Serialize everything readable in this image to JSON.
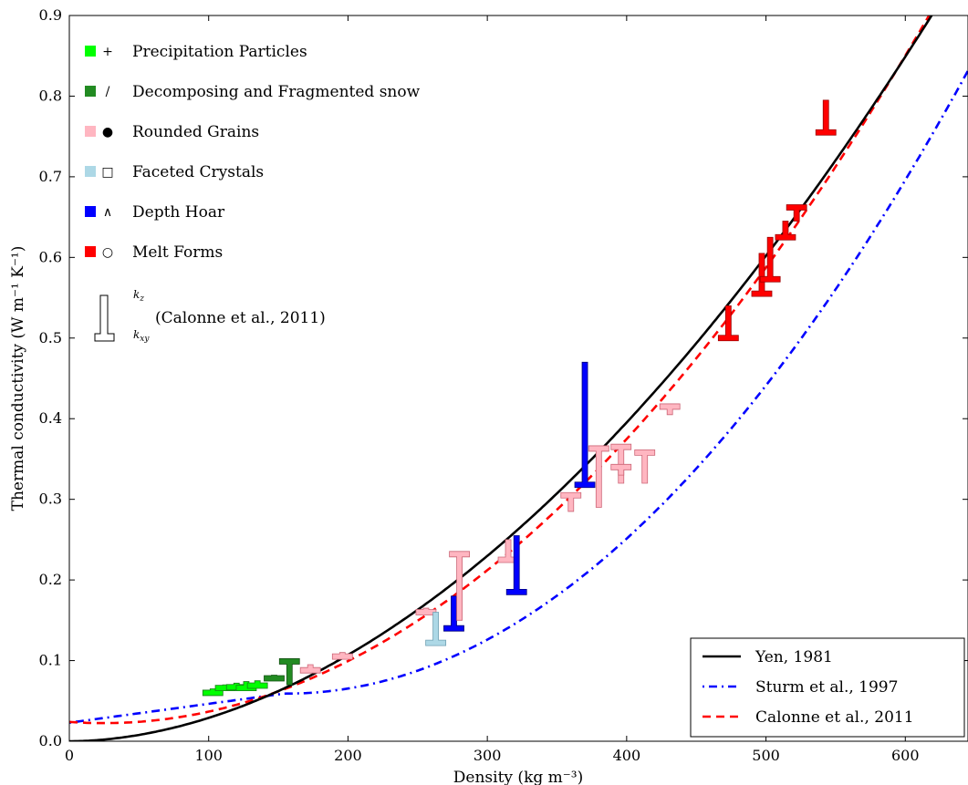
{
  "chart_data": {
    "type": "scatter",
    "xlabel": "Density (kg m⁻³)",
    "ylabel": "Thermal conductivity (W m⁻¹ K⁻¹)",
    "xlim": [
      0,
      645
    ],
    "ylim": [
      0,
      0.9
    ],
    "xticks": [
      "0",
      "100",
      "200",
      "300",
      "400",
      "500",
      "600"
    ],
    "yticks": [
      "0.0",
      "0.1",
      "0.2",
      "0.3",
      "0.4",
      "0.5",
      "0.6",
      "0.7",
      "0.8",
      "0.9"
    ],
    "grid": false,
    "class_legend": {
      "placement": "top-left",
      "entries": [
        {
          "label": "Precipitation Particles",
          "color": "#00ff00",
          "symbol": "+"
        },
        {
          "label": "Decomposing and Fragmented snow",
          "color": "#228b22",
          "symbol": "/"
        },
        {
          "label": "Rounded Grains",
          "color": "#ffb6c1",
          "symbol": "●"
        },
        {
          "label": "Faceted Crystals",
          "color": "#add8e6",
          "symbol": "□"
        },
        {
          "label": "Depth Hoar",
          "color": "#0000ff",
          "symbol": "∧"
        },
        {
          "label": "Melt Forms",
          "color": "#ff0000",
          "symbol": "○"
        }
      ],
      "marker_key": {
        "kz": "k",
        "kz_sub": "z",
        "kxy": "k",
        "kxy_sub": "xy",
        "label": "(Calonne et al., 2011)"
      }
    },
    "line_legend": {
      "placement": "bottom-right",
      "entries": [
        {
          "label": "Yen, 1981",
          "color": "#000000",
          "style": "solid"
        },
        {
          "label": "Sturm et al., 1997",
          "color": "#0000ff",
          "style": "dashdot"
        },
        {
          "label": "Calonne et al., 2011",
          "color": "#ff0000",
          "style": "dashed"
        }
      ]
    },
    "series": [
      {
        "name": "Yen, 1981",
        "formula": "k = 2.22362 * (rho/1000)^1.885",
        "color": "#000000"
      },
      {
        "name": "Sturm et al., 1997",
        "formula": "rho<156: 0.023 + 0.234*(rho/1000); else 0.138 - 1.01*(rho/1000) + 3.233*(rho/1000)^2",
        "color": "#0000ff"
      },
      {
        "name": "Calonne et al., 2011",
        "formula": "k = 2.5e-6*rho^2 - 1.23e-4*rho + 0.024",
        "color": "#ff0000"
      }
    ],
    "measurements": [
      {
        "class": "Precipitation Particles",
        "color": "#00ff00",
        "density": 103,
        "kz": 0.065,
        "kxy": 0.06
      },
      {
        "class": "Precipitation Particles",
        "color": "#00ff00",
        "density": 112,
        "kz": 0.07,
        "kxy": 0.066
      },
      {
        "class": "Precipitation Particles",
        "color": "#00ff00",
        "density": 120,
        "kz": 0.072,
        "kxy": 0.067
      },
      {
        "class": "Precipitation Particles",
        "color": "#00ff00",
        "density": 127,
        "kz": 0.074,
        "kxy": 0.066
      },
      {
        "class": "Precipitation Particles",
        "color": "#00ff00",
        "density": 135,
        "kz": 0.075,
        "kxy": 0.069
      },
      {
        "class": "Decomposing and Fragmented snow",
        "color": "#228b22",
        "density": 147,
        "kz": 0.082,
        "kxy": 0.078
      },
      {
        "class": "Decomposing and Fragmented snow",
        "color": "#228b22",
        "density": 158,
        "kz": 0.07,
        "kxy": 0.099
      },
      {
        "class": "Rounded Grains",
        "color": "#ffb6c1",
        "density": 173,
        "kz": 0.095,
        "kxy": 0.088
      },
      {
        "class": "Rounded Grains",
        "color": "#ffb6c1",
        "density": 196,
        "kz": 0.11,
        "kxy": 0.105
      },
      {
        "class": "Rounded Grains",
        "color": "#ffb6c1",
        "density": 256,
        "kz": 0.165,
        "kxy": 0.16
      },
      {
        "class": "Faceted Crystals",
        "color": "#add8e6",
        "density": 263,
        "kz": 0.16,
        "kxy": 0.122
      },
      {
        "class": "Depth Hoar",
        "color": "#0000ff",
        "density": 276,
        "kz": 0.18,
        "kxy": 0.14
      },
      {
        "class": "Rounded Grains",
        "color": "#ffb6c1",
        "density": 280,
        "kz": 0.15,
        "kxy": 0.232
      },
      {
        "class": "Rounded Grains",
        "color": "#ffb6c1",
        "density": 315,
        "kz": 0.25,
        "kxy": 0.225
      },
      {
        "class": "Depth Hoar",
        "color": "#0000ff",
        "density": 321,
        "kz": 0.255,
        "kxy": 0.185
      },
      {
        "class": "Rounded Grains",
        "color": "#ffb6c1",
        "density": 360,
        "kz": 0.285,
        "kxy": 0.305
      },
      {
        "class": "Depth Hoar",
        "color": "#0000ff",
        "density": 370,
        "kz": 0.47,
        "kxy": 0.318
      },
      {
        "class": "Rounded Grains",
        "color": "#ffb6c1",
        "density": 380,
        "kz": 0.29,
        "kxy": 0.363
      },
      {
        "class": "Rounded Grains",
        "color": "#ffb6c1",
        "density": 396,
        "kz": 0.32,
        "kxy": 0.365
      },
      {
        "class": "Rounded Grains",
        "color": "#ffb6c1",
        "density": 396,
        "kz": 0.33,
        "kxy": 0.34
      },
      {
        "class": "Rounded Grains",
        "color": "#ffb6c1",
        "density": 413,
        "kz": 0.32,
        "kxy": 0.358
      },
      {
        "class": "Rounded Grains",
        "color": "#ffb6c1",
        "density": 431,
        "kz": 0.405,
        "kxy": 0.415
      },
      {
        "class": "Melt Forms",
        "color": "#ff0000",
        "density": 473,
        "kz": 0.54,
        "kxy": 0.5
      },
      {
        "class": "Melt Forms",
        "color": "#ff0000",
        "density": 497,
        "kz": 0.605,
        "kxy": 0.555
      },
      {
        "class": "Melt Forms",
        "color": "#ff0000",
        "density": 503,
        "kz": 0.625,
        "kxy": 0.573
      },
      {
        "class": "Melt Forms",
        "color": "#ff0000",
        "density": 514,
        "kz": 0.645,
        "kxy": 0.625
      },
      {
        "class": "Melt Forms",
        "color": "#ff0000",
        "density": 522,
        "kz": 0.645,
        "kxy": 0.662
      },
      {
        "class": "Melt Forms",
        "color": "#ff0000",
        "density": 543,
        "kz": 0.795,
        "kxy": 0.755
      }
    ]
  }
}
